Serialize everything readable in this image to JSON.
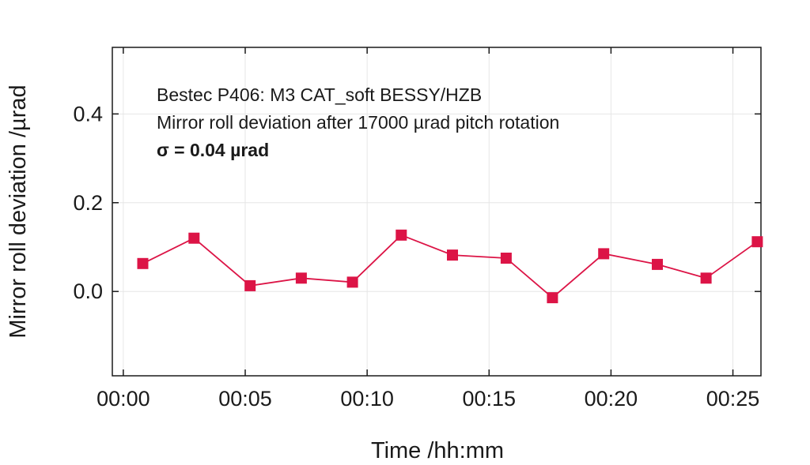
{
  "chart_data": {
    "type": "line",
    "title": "",
    "xlabel": "Time /hh:mm",
    "ylabel": "Mirror roll deviation /µrad",
    "annotations": [
      "Bestec P406: M3 CAT_soft BESSY/HZB",
      "Mirror roll deviation after 17000 µrad pitch rotation",
      "σ = 0.04 µrad"
    ],
    "x_ticks": [
      {
        "value": 0,
        "label": "00:00"
      },
      {
        "value": 5,
        "label": "00:05"
      },
      {
        "value": 10,
        "label": "00:10"
      },
      {
        "value": 15,
        "label": "00:15"
      },
      {
        "value": 20,
        "label": "00:20"
      },
      {
        "value": 25,
        "label": "00:25"
      }
    ],
    "y_ticks": [
      {
        "value": 0.0,
        "label": "0.0"
      },
      {
        "value": 0.2,
        "label": "0.2"
      },
      {
        "value": 0.4,
        "label": "0.4"
      }
    ],
    "xlim": [
      -0.45,
      26.15
    ],
    "ylim": [
      -0.19,
      0.55
    ],
    "grid": true,
    "legend": "none",
    "series": [
      {
        "color": "#dc1446",
        "marker": "square",
        "x": [
          0.8,
          2.9,
          5.2,
          7.3,
          9.4,
          11.4,
          13.5,
          15.7,
          17.6,
          19.7,
          21.9,
          23.9,
          26.0
        ],
        "y": [
          0.063,
          0.12,
          0.013,
          0.03,
          0.021,
          0.127,
          0.082,
          0.075,
          -0.014,
          0.085,
          0.061,
          0.03,
          0.112
        ]
      }
    ]
  }
}
